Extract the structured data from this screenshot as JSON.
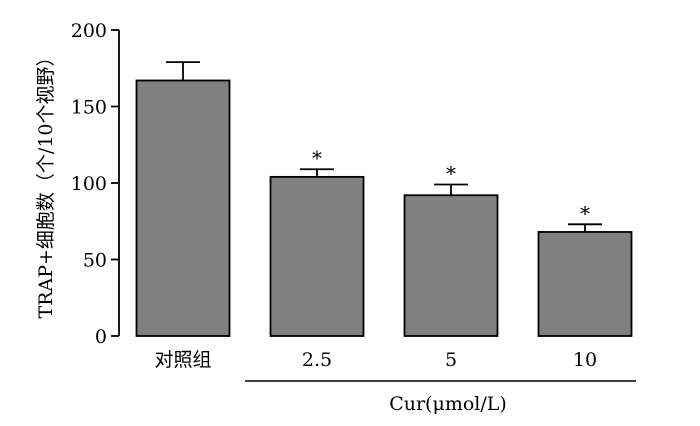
{
  "chart_data": {
    "type": "bar",
    "categories": [
      "对照组",
      "2.5",
      "5",
      "10"
    ],
    "values": [
      167,
      104,
      92,
      68
    ],
    "errors": [
      12,
      5,
      7,
      5
    ],
    "annotations": [
      "",
      "*",
      "*",
      "*"
    ],
    "ylabel": "TRAP+细胞数（个/10个视野）",
    "group_label": "Cur(μmol/L)",
    "ylim": [
      0,
      200
    ],
    "yticks": [
      0,
      50,
      100,
      150,
      200
    ],
    "bar_color": "#808080",
    "grid": false
  }
}
